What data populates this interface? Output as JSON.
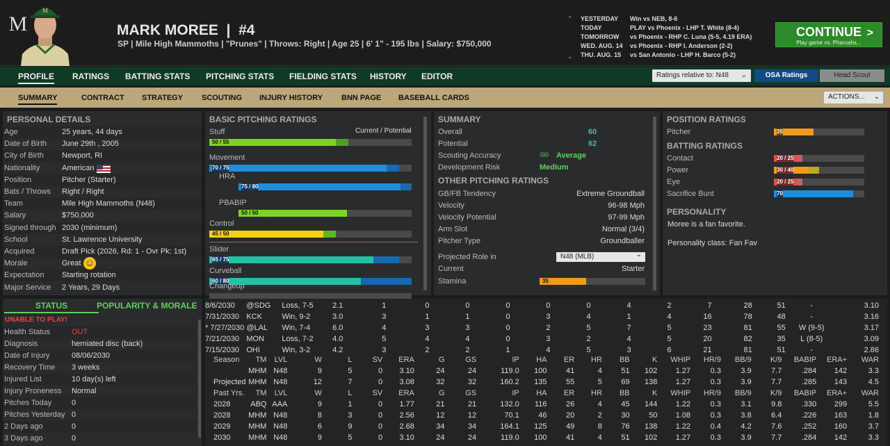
{
  "player": {
    "initial": "M",
    "name": "MARK MOREE",
    "number": "#4",
    "line": "SP | Mile High Mammoths | \"Prunes\" | Throws: Right | Age 25 | 6' 1\" - 195 lbs | Salary: $750,000"
  },
  "schedule": [
    {
      "day": "YESTERDAY",
      "event": "Win vs NEB, 8-6"
    },
    {
      "day": "TODAY",
      "event": "PLAY vs Phoenix - LHP T. White (8-4)"
    },
    {
      "day": "TOMORROW",
      "event": "vs Phoenix - RHP C. Luna (5-5, 4.19 ERA)"
    },
    {
      "day": "WED. AUG. 14",
      "event": "vs Phoenix - RHP I. Anderson (2-2)"
    },
    {
      "day": "THU. AUG. 15",
      "event": "vs San Antonio - LHP H. Barco (5-2)"
    }
  ],
  "continue": {
    "label": "CONTINUE",
    "sub": "Play game vs. Pharoahs..."
  },
  "tabs": [
    "PROFILE",
    "RATINGS",
    "BATTING STATS",
    "PITCHING STATS",
    "FIELDING STATS",
    "HISTORY",
    "EDITOR"
  ],
  "ratings_select": "Ratings relative to: N48",
  "osa": "OSA Ratings",
  "head_scout": "Head Scout",
  "subtabs": [
    "SUMMARY",
    "CONTRACT",
    "STRATEGY",
    "SCOUTING",
    "INJURY HISTORY",
    "BNN PAGE",
    "BASEBALL CARDS"
  ],
  "actions": "ACTIONS...",
  "personal": {
    "title": "PERSONAL DETAILS",
    "rows": [
      [
        "Age",
        "25 years, 44 days"
      ],
      [
        "Date of Birth",
        "June 29th , 2005"
      ],
      [
        "City of Birth",
        "Newport, RI"
      ],
      [
        "Nationality",
        "American"
      ],
      [
        "Position",
        "Pitcher (Starter)"
      ],
      [
        "Bats / Throws",
        "Right / Right"
      ],
      [
        "Team",
        "Mile High Mammoths (N48)"
      ],
      [
        "Salary",
        "$750,000"
      ],
      [
        "Signed through",
        "2030 (minimum)"
      ],
      [
        "School",
        "St. Lawrence University"
      ],
      [
        "Acquired",
        "Draft Pick (2026, Rd: 1 - Ovr Pk: 1st)"
      ],
      [
        "Morale",
        "Great"
      ],
      [
        "Expectation",
        "Starting rotation"
      ],
      [
        "Major Service",
        "2 Years, 29 Days"
      ]
    ]
  },
  "status": {
    "tab1": "STATUS",
    "tab2": "POPULARITY & MORALE",
    "alert": "UNABLE TO PLAY!",
    "rows": [
      [
        "Health Status",
        "OUT"
      ],
      [
        "Diagnosis",
        "herniated disc (back)"
      ],
      [
        "Date of Injury",
        "08/06/2030"
      ],
      [
        "Recovery Time",
        "3 weeks"
      ],
      [
        "Injured List",
        "10 day(s) left"
      ],
      [
        "Injury Proneness",
        "Normal"
      ],
      [
        "Pitches Today",
        "0"
      ],
      [
        "Pitches Yesterday",
        "0"
      ],
      [
        "2 Days ago",
        "0"
      ],
      [
        "3 Days ago",
        "0"
      ]
    ]
  },
  "basic": {
    "title": "BASIC PITCHING RATINGS",
    "cp": "Current / Potential",
    "items": [
      {
        "name": "Stuff",
        "label": "50 / 55",
        "cur": 50,
        "pot": 55,
        "color": "#7ed321",
        "pc": "#4ca321",
        "indent": false
      },
      {
        "name": "Movement",
        "label": "70 / 75",
        "cur": 70,
        "pot": 75,
        "color": "#1e8fe0",
        "pc": "#1668b0",
        "indent": false
      },
      {
        "name": "HRA",
        "label": "75 / 80",
        "cur": 75,
        "pot": 80,
        "color": "#1e8fe0",
        "pc": "#1668b0",
        "indent": true
      },
      {
        "name": "PBABIP",
        "label": "50 / 50",
        "cur": 50,
        "pot": 50,
        "color": "#7ed321",
        "pc": "#4ca321",
        "indent": true
      },
      {
        "name": "Control",
        "label": "45 / 50",
        "cur": 45,
        "pot": 50,
        "color": "#f5d20a",
        "pc": "#5eb820",
        "indent": false
      },
      {
        "name": "Slider",
        "label": "65 / 75",
        "cur": 65,
        "pot": 75,
        "color": "#1ec4a4",
        "pc": "#1668b0",
        "indent": false
      },
      {
        "name": "Curveball",
        "label": "60 / 80",
        "cur": 60,
        "pot": 80,
        "color": "#1ec4a4",
        "pc": "#1668b0",
        "indent": false
      },
      {
        "name": "Changeup",
        "label": "",
        "cur": 0,
        "pot": 0,
        "color": "#1ec4a4",
        "pc": "#1668b0",
        "indent": false
      }
    ]
  },
  "summary": {
    "title": "SUMMARY",
    "overall_l": "Overall",
    "overall": "60",
    "potential_l": "Potential",
    "potential": "62",
    "acc_l": "Scouting Accuracy",
    "acc": "Average",
    "risk_l": "Development Risk",
    "risk": "Medium"
  },
  "other": {
    "title": "OTHER PITCHING RATINGS",
    "rows": [
      [
        "GB/FB Tendency",
        "Extreme Groundball"
      ],
      [
        "Velocity",
        "96-98 Mph"
      ],
      [
        "Velocity Potential",
        "97-99 Mph"
      ],
      [
        "Arm Slot",
        "Normal (3/4)"
      ],
      [
        "Pitcher Type",
        "Groundballer"
      ]
    ],
    "role_l": "Projected Role in",
    "role": "N48 (MLB)",
    "current_l": "Current",
    "current": "Starter",
    "stamina_l": "Stamina",
    "stamina": "35"
  },
  "position": {
    "title": "POSITION RATINGS",
    "pitcher_l": "Pitcher",
    "pitcher": "35",
    "batting_title": "BATTING RATINGS",
    "batting": [
      {
        "name": "Contact",
        "label": "20 / 25",
        "cur": 20,
        "pot": 25,
        "color": "#e84a4a",
        "pc": "#c86060"
      },
      {
        "name": "Power",
        "label": "30 / 40",
        "cur": 30,
        "pot": 40,
        "color": "#f39c12",
        "pc": "#c2a520"
      },
      {
        "name": "Eye",
        "label": "20 / 25",
        "cur": 20,
        "pot": 25,
        "color": "#e84a4a",
        "pc": "#c86060"
      },
      {
        "name": "Sacrifice Bunt",
        "label": "70",
        "cur": 70,
        "pot": 70,
        "color": "#1e8fe0",
        "pc": "#1e8fe0"
      }
    ],
    "personality_title": "PERSONALITY",
    "personality_text": "Moree is a fan favorite.",
    "personality_class": "Personality class: Fan Fav"
  },
  "games": [
    [
      "8/6/2030",
      "@SDG",
      "Loss, 7-5",
      "2.1",
      "1",
      "0",
      "0",
      "0",
      "0",
      "0",
      "4",
      "2",
      "7",
      "28",
      "51",
      "-",
      "3.10"
    ],
    [
      "7/31/2030",
      "KCK",
      "Win, 9-2",
      "3.0",
      "3",
      "1",
      "1",
      "0",
      "3",
      "4",
      "1",
      "4",
      "16",
      "78",
      "48",
      "-",
      "3.16"
    ],
    [
      "* 7/27/2030",
      "@LAL",
      "Win, 7-4",
      "6.0",
      "4",
      "3",
      "3",
      "0",
      "2",
      "5",
      "7",
      "5",
      "23",
      "81",
      "55",
      "W (9-5)",
      "3.17"
    ],
    [
      "7/21/2030",
      "MON",
      "Loss, 7-2",
      "4.0",
      "5",
      "4",
      "4",
      "0",
      "3",
      "2",
      "4",
      "5",
      "20",
      "82",
      "35",
      "L (8-5)",
      "3.09"
    ],
    [
      "7/15/2030",
      "OHI",
      "Win, 3-2",
      "4.2",
      "3",
      "2",
      "2",
      "1",
      "4",
      "5",
      "3",
      "6",
      "21",
      "81",
      "51",
      "-",
      "2.86"
    ]
  ],
  "season_header": [
    "Season",
    "TM",
    "LVL",
    "W",
    "L",
    "SV",
    "ERA",
    "G",
    "GS",
    "IP",
    "HA",
    "ER",
    "HR",
    "BB",
    "K",
    "WHIP",
    "HR/9",
    "BB/9",
    "K/9",
    "BABIP",
    "ERA+",
    "WAR"
  ],
  "season_rows": [
    [
      "",
      "MHM",
      "N48",
      "9",
      "5",
      "0",
      "3.10",
      "24",
      "24",
      "119.0",
      "100",
      "41",
      "4",
      "51",
      "102",
      "1.27",
      "0.3",
      "3.9",
      "7.7",
      ".284",
      "142",
      "3.3"
    ],
    [
      "Projected",
      "MHM",
      "N48",
      "12",
      "7",
      "0",
      "3.08",
      "32",
      "32",
      "160.2",
      "135",
      "55",
      "5",
      "69",
      "138",
      "1.27",
      "0.3",
      "3.9",
      "7.7",
      ".285",
      "143",
      "4.5"
    ]
  ],
  "past_header": [
    "Past Yrs.",
    "TM",
    "LVL",
    "W",
    "L",
    "SV",
    "ERA",
    "G",
    "GS",
    "IP",
    "HA",
    "ER",
    "HR",
    "BB",
    "K",
    "WHIP",
    "HR/9",
    "BB/9",
    "K/9",
    "BABIP",
    "ERA+",
    "WAR"
  ],
  "past_rows": [
    [
      "2028",
      "ABQ",
      "AAA",
      "9",
      "1",
      "0",
      "1.77",
      "21",
      "21",
      "132.0",
      "116",
      "26",
      "4",
      "45",
      "144",
      "1.22",
      "0.3",
      "3.1",
      "9.8",
      ".330",
      "299",
      "5.5"
    ],
    [
      "2028",
      "MHM",
      "N48",
      "8",
      "3",
      "0",
      "2.56",
      "12",
      "12",
      "70.1",
      "46",
      "20",
      "2",
      "30",
      "50",
      "1.08",
      "0.3",
      "3.8",
      "6.4",
      ".226",
      "163",
      "1.8"
    ],
    [
      "2029",
      "MHM",
      "N48",
      "6",
      "9",
      "0",
      "2.68",
      "34",
      "34",
      "164.1",
      "125",
      "49",
      "8",
      "76",
      "138",
      "1.22",
      "0.4",
      "4.2",
      "7.6",
      ".252",
      "160",
      "3.7"
    ],
    [
      "2030",
      "MHM",
      "N48",
      "9",
      "5",
      "0",
      "3.10",
      "24",
      "24",
      "119.0",
      "100",
      "41",
      "4",
      "51",
      "102",
      "1.27",
      "0.3",
      "3.9",
      "7.7",
      ".284",
      "142",
      "3.3"
    ]
  ]
}
